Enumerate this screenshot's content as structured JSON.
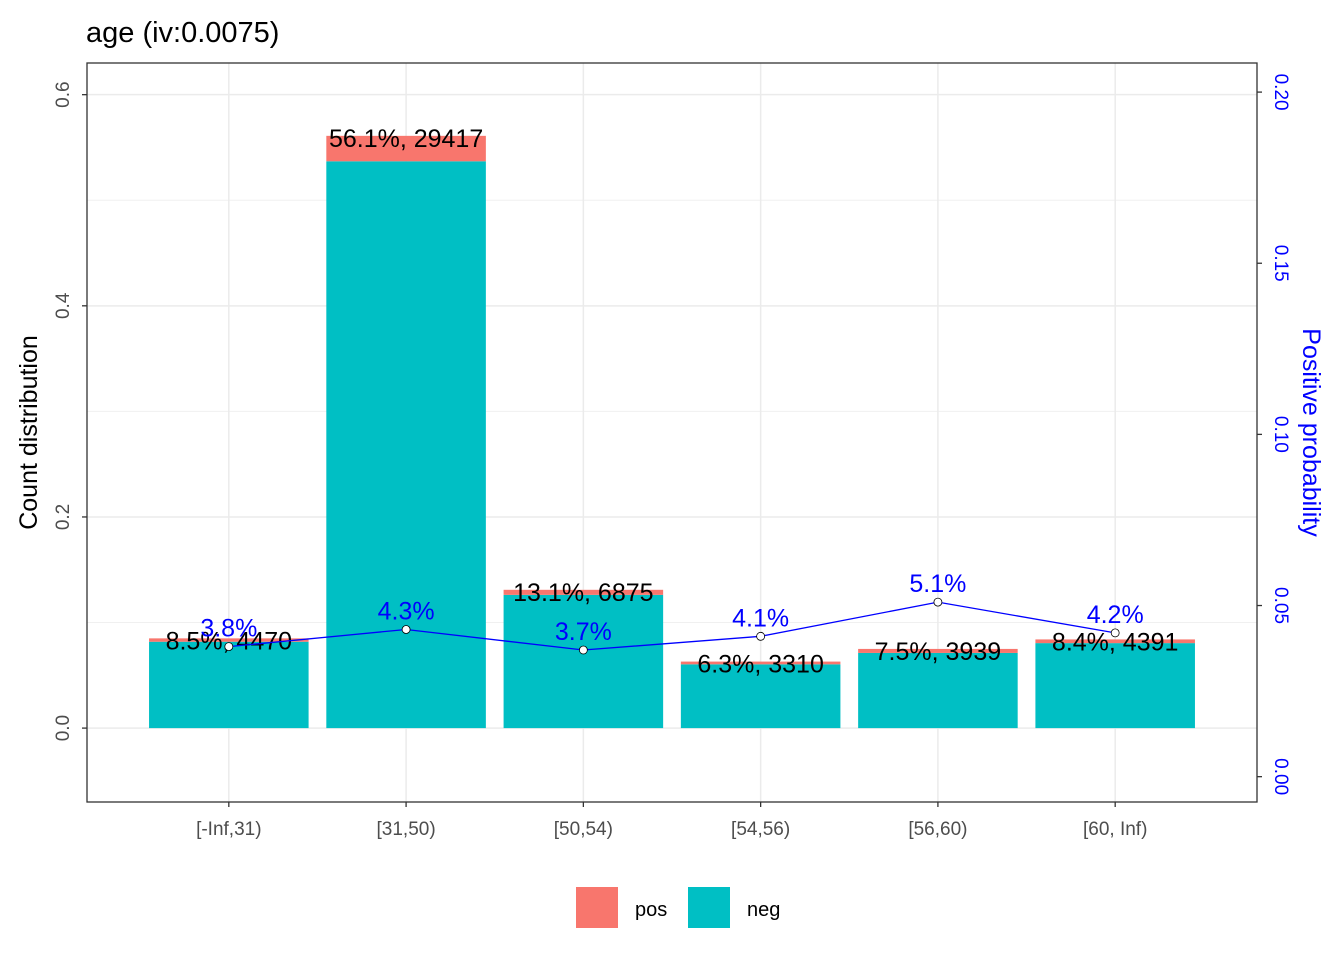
{
  "chart_data": {
    "type": "bar",
    "title": "age  (iv:0.0075)",
    "ylabel": "Count distribution",
    "y2label": "Positive probability",
    "ylim": [
      -0.07,
      0.63
    ],
    "y2lim": [
      -0.0074,
      0.2085
    ],
    "yticks": [
      "0.0",
      "0.2",
      "0.4",
      "0.6"
    ],
    "y2ticks": [
      "0.00",
      "0.05",
      "0.10",
      "0.15",
      "0.20"
    ],
    "y2tick_values": [
      0,
      0.05,
      0.1,
      0.15,
      0.2
    ],
    "categories": [
      "[-Inf,31)",
      "[31,50)",
      "[50,54)",
      "[54,56)",
      "[56,60)",
      "[60, Inf)"
    ],
    "series": [
      {
        "name": "pos",
        "color": "#F8766D",
        "values": [
          0.0032,
          0.0241,
          0.0048,
          0.0026,
          0.0038,
          0.0035
        ]
      },
      {
        "name": "neg",
        "color": "#00BFC4",
        "values": [
          0.0818,
          0.5369,
          0.1262,
          0.0604,
          0.0712,
          0.0805
        ]
      }
    ],
    "bar_labels": [
      "8.5%, 4470",
      "56.1%, 29417",
      "13.1%, 6875",
      "6.3%, 3310",
      "7.5%, 3939",
      "8.4%, 4391"
    ],
    "positive_probability": [
      0.038,
      0.043,
      0.037,
      0.041,
      0.051,
      0.042
    ],
    "probability_labels": [
      "3.8%",
      "4.3%",
      "3.7%",
      "4.1%",
      "5.1%",
      "4.2%"
    ],
    "line_color": "#0000FF",
    "legend": [
      {
        "name": "pos",
        "color": "#F8766D"
      },
      {
        "name": "neg",
        "color": "#00BFC4"
      }
    ],
    "legend_position": "bottom",
    "grid": true
  }
}
